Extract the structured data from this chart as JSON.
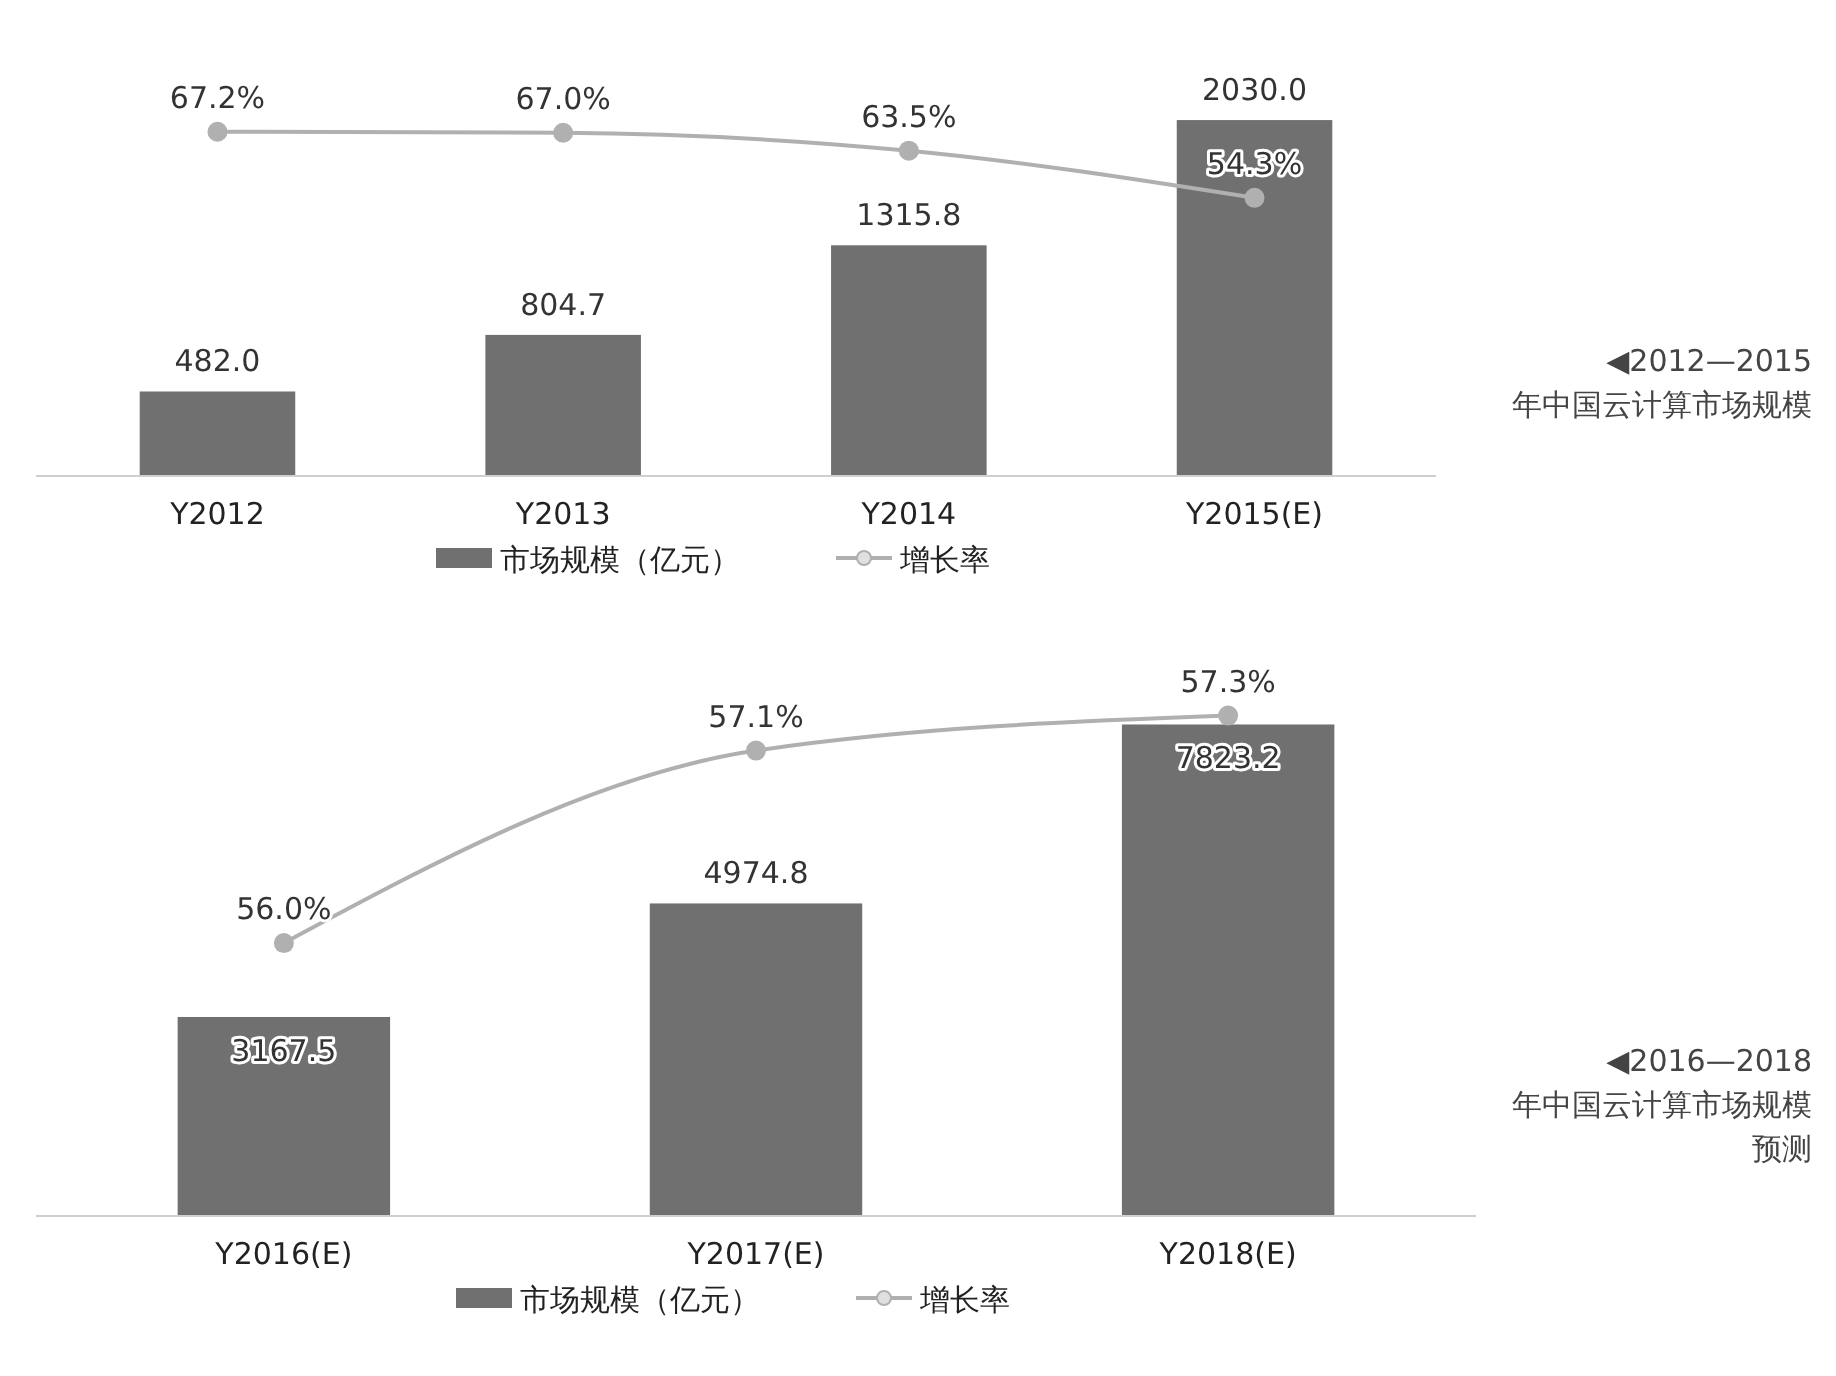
{
  "chart_data": [
    {
      "type": "bar",
      "annotations": [
        "◀2012—2015年中国云计算市场规模"
      ],
      "categories": [
        "Y2012",
        "Y2013",
        "Y2014",
        "Y2015(E)"
      ],
      "tick_labels": "x",
      "data_labels": true,
      "legend": "bottom",
      "series": [
        {
          "name": "市场规模（亿元）",
          "color": "#707070",
          "values": [
            482.0,
            804.7,
            1315.8,
            2030.0
          ],
          "value_labels": [
            "482.0",
            "804.7",
            "1315.8",
            "2030.0"
          ]
        },
        {
          "name": "增长率",
          "type": "line",
          "axis": "y2",
          "color": "#b0b0b0",
          "marker": "circle",
          "values": [
            67.2,
            67.0,
            63.5,
            54.3
          ],
          "value_labels": [
            "67.2%",
            "67.0%",
            "63.5%",
            "54.3%"
          ]
        }
      ]
    },
    {
      "type": "bar",
      "annotations": [
        "◀2016—2018年中国云计算市场规模预测"
      ],
      "categories": [
        "Y2016(E)",
        "Y2017(E)",
        "Y2018(E)"
      ],
      "tick_labels": "x",
      "data_labels": true,
      "legend": "bottom",
      "series": [
        {
          "name": "市场规模（亿元）",
          "color": "#707070",
          "values": [
            3167.5,
            4974.8,
            7823.2
          ],
          "value_labels": [
            "3167.5",
            "4974.8",
            "7823.2"
          ]
        },
        {
          "name": "增长率",
          "type": "line",
          "axis": "y2",
          "color": "#b0b0b0",
          "marker": "circle",
          "values": [
            56.0,
            57.1,
            57.3
          ],
          "value_labels": [
            "56.0%",
            "57.1%",
            "57.3%"
          ]
        }
      ]
    }
  ]
}
